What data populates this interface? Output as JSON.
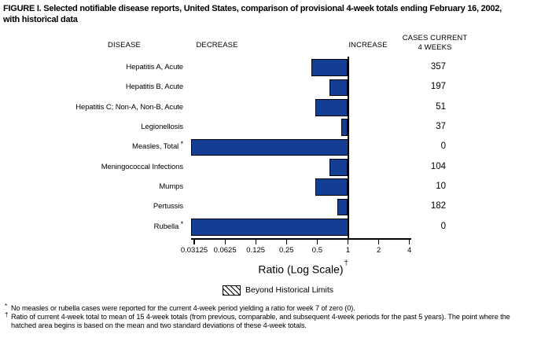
{
  "title": {
    "line1": "FIGURE I. Selected notifiable disease reports, United States, comparison of provisional 4-week totals ending February 16, 2002,",
    "line2": "with historical data",
    "full": "FIGURE I. Selected notifiable disease reports, United States, comparison of provisional 4-week totals ending February 16, 2002, with historical data"
  },
  "headers": {
    "disease": "DISEASE",
    "decrease": "DECREASE",
    "increase": "INCREASE",
    "cases": "CASES CURRENT\n4 WEEKS"
  },
  "chart_data": {
    "type": "bar",
    "orientation": "horizontal",
    "title": "FIGURE I. Selected notifiable disease reports, United States, comparison of provisional 4-week totals ending February 16, 2002, with historical data",
    "xlabel": "Ratio (Log Scale)",
    "xlabel_footnote_marker": "†",
    "x_axis": {
      "scale": "log2",
      "ticks": [
        0.03125,
        0.0625,
        0.125,
        0.25,
        0.5,
        1,
        2,
        4
      ],
      "tick_labels": [
        "0.03125",
        "0.0625",
        "0.125",
        "0.25",
        "0.5",
        "1",
        "2",
        "4"
      ],
      "baseline_ratio": 1
    },
    "rows": [
      {
        "disease": "Hepatitis A, Acute",
        "marker": "",
        "ratio": 0.44,
        "cases": "357"
      },
      {
        "disease": "Hepatitis B, Acute",
        "marker": "",
        "ratio": 0.66,
        "cases": "197"
      },
      {
        "disease": "Hepatitis C; Non-A, Non-B, Acute",
        "marker": "",
        "ratio": 0.48,
        "cases": "51"
      },
      {
        "disease": "Legionellosis",
        "marker": "",
        "ratio": 0.86,
        "cases": "37"
      },
      {
        "disease": "Measles, Total",
        "marker": "*",
        "ratio": 0,
        "cases": "0"
      },
      {
        "disease": "Meningococcal Infections",
        "marker": "",
        "ratio": 0.66,
        "cases": "104"
      },
      {
        "disease": "Mumps",
        "marker": "",
        "ratio": 0.48,
        "cases": "10"
      },
      {
        "disease": "Pertussis",
        "marker": "",
        "ratio": 0.79,
        "cases": "182"
      },
      {
        "disease": "Rubella",
        "marker": "*",
        "ratio": 0,
        "cases": "0"
      }
    ],
    "legend": {
      "swatch": "hatched",
      "label": "Beyond Historical Limits"
    },
    "bar_color": "#133e94",
    "bar_border": "#000000"
  },
  "footnotes": [
    {
      "marker": "*",
      "text": "No measles or rubella cases were reported for the current 4-week period yielding a ratio for week 7 of zero (0)."
    },
    {
      "marker": "†",
      "text": "Ratio of current 4-week total to mean of 15 4-week totals (from previous, comparable, and subsequent 4-week periods for the past 5 years). The point where the hatched area begins is based on the mean and two standard deviations of these 4-week totals."
    }
  ]
}
